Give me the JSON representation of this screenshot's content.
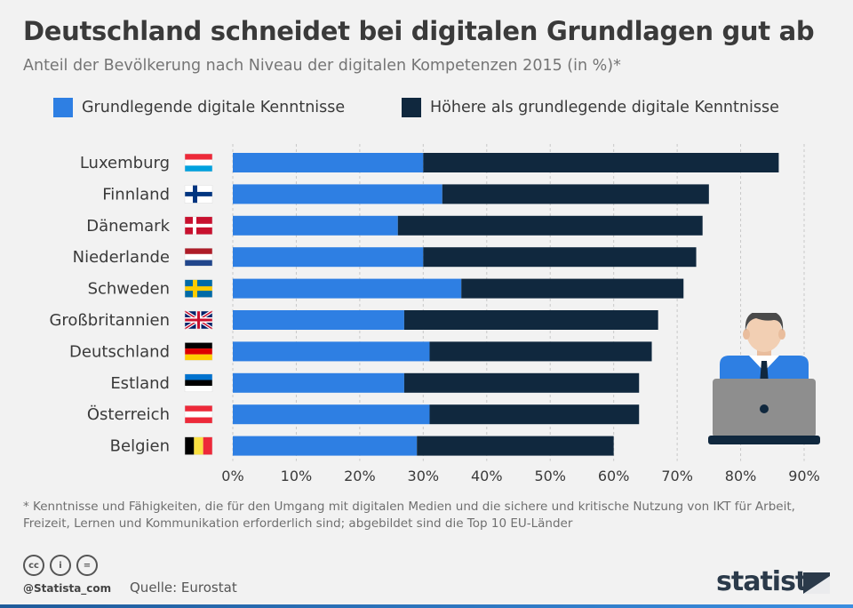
{
  "header": {
    "title": "Deutschland schneidet bei digitalen Grundlagen gut ab",
    "subtitle": "Anteil der Bevölkerung nach Niveau der digitalen Kompetenzen 2015 (in %)*"
  },
  "colors": {
    "basic": "#2e7fe3",
    "advanced": "#10283e",
    "grid": "#c8c8c8",
    "text": "#3a3a3a"
  },
  "chart_data": {
    "type": "bar",
    "orientation": "horizontal",
    "stacked": true,
    "categories": [
      "Luxemburg",
      "Finnland",
      "Dänemark",
      "Niederlande",
      "Schweden",
      "Großbritannien",
      "Deutschland",
      "Estland",
      "Österreich",
      "Belgien"
    ],
    "flags": [
      "luxembourg-flag",
      "finland-flag",
      "denmark-flag",
      "netherlands-flag",
      "sweden-flag",
      "uk-flag",
      "germany-flag",
      "estonia-flag",
      "austria-flag",
      "belgium-flag"
    ],
    "series": [
      {
        "name": "Grundlegende digitale Kenntnisse",
        "values": [
          30,
          33,
          26,
          30,
          36,
          27,
          31,
          27,
          31,
          29
        ]
      },
      {
        "name": "Höhere als grundlegende digitale Kenntnisse",
        "values": [
          56,
          42,
          48,
          43,
          35,
          40,
          35,
          37,
          33,
          31
        ]
      }
    ],
    "xlim": [
      0,
      90
    ],
    "xticks": [
      0,
      10,
      20,
      30,
      40,
      50,
      60,
      70,
      80,
      90
    ],
    "xtick_labels": [
      "0%",
      "10%",
      "20%",
      "30%",
      "40%",
      "50%",
      "60%",
      "70%",
      "80%",
      "90%"
    ],
    "grid": true,
    "legend_position": "top"
  },
  "footnote": "* Kenntnisse und Fähigkeiten, die für den Umgang mit digitalen Medien und die sichere und kritische Nutzung von IKT für Arbeit, Freizeit, Lernen und Kommunikation erforderlich sind; abgebildet sind die Top 10 EU-Länder",
  "footer": {
    "handle": "@Statista_com",
    "source": "Quelle: Eurostat",
    "brand": "statista",
    "license_icons": [
      "cc-icon",
      "by-icon",
      "nd-icon"
    ],
    "license_labels": [
      "cc",
      "i",
      "="
    ]
  },
  "illustration": "person-with-laptop-icon"
}
